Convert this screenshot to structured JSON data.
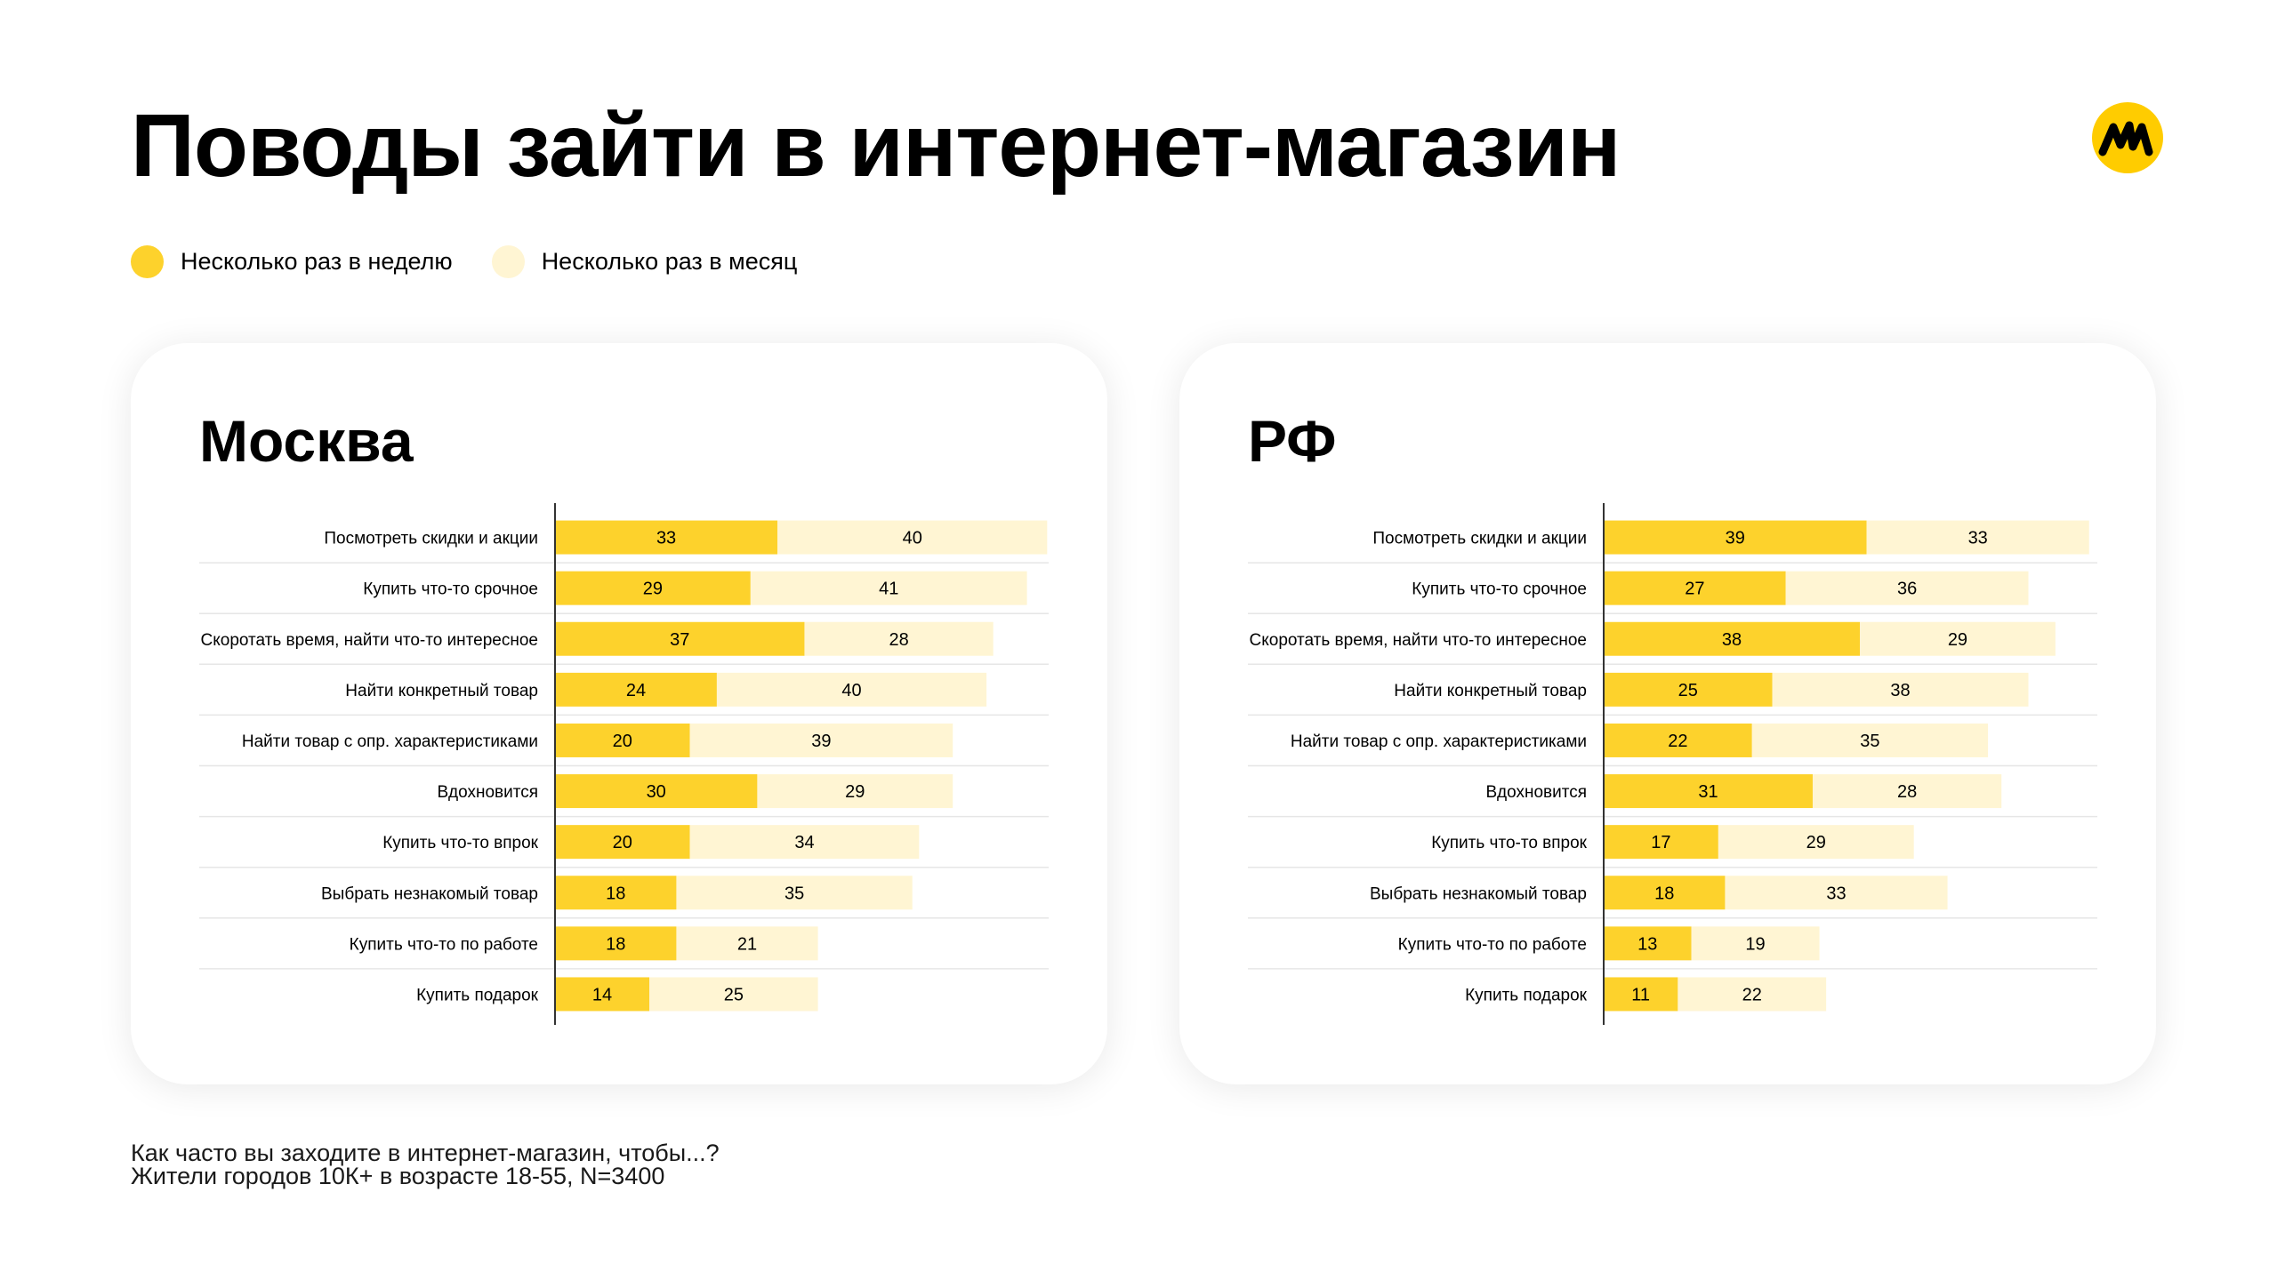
{
  "header": {
    "title": "Поводы зайти в интернет-магазин"
  },
  "legend": [
    {
      "label": "Несколько раз в неделю",
      "color": "#fdd22c"
    },
    {
      "label": "Несколько раз в месяц",
      "color": "#fff5d3"
    }
  ],
  "chart_data": [
    {
      "type": "bar",
      "orientation": "horizontal",
      "stacked": true,
      "title": "Москва",
      "categories": [
        "Посмотреть скидки и акции",
        "Купить что-то срочное",
        "Скоротать время, найти что-то интересное",
        "Найти конкретный товар",
        "Найти товар с опр. характеристиками",
        "Вдохновится",
        "Купить что-то впрок",
        "Выбрать незнакомый товар",
        "Купить что-то по работе",
        "Купить подарок"
      ],
      "series": [
        {
          "name": "Несколько раз в неделю",
          "values": [
            33,
            29,
            37,
            24,
            20,
            30,
            20,
            18,
            18,
            14
          ]
        },
        {
          "name": "Несколько раз в месяц",
          "values": [
            40,
            41,
            28,
            40,
            39,
            29,
            34,
            35,
            21,
            25
          ]
        }
      ]
    },
    {
      "type": "bar",
      "orientation": "horizontal",
      "stacked": true,
      "title": "РФ",
      "categories": [
        "Посмотреть скидки и акции",
        "Купить что-то срочное",
        "Скоротать время, найти что-то интересное",
        "Найти конкретный товар",
        "Найти товар с опр. характеристиками",
        "Вдохновится",
        "Купить что-то впрок",
        "Выбрать незнакомый товар",
        "Купить что-то по работе",
        "Купить подарок"
      ],
      "series": [
        {
          "name": "Несколько раз в неделю",
          "values": [
            39,
            27,
            38,
            25,
            22,
            31,
            17,
            18,
            13,
            11
          ]
        },
        {
          "name": "Несколько раз в месяц",
          "values": [
            33,
            36,
            29,
            38,
            35,
            28,
            29,
            33,
            19,
            22
          ]
        }
      ]
    }
  ],
  "footnote": {
    "line1": "Как часто вы заходите в интернет-магазин, чтобы...?",
    "line2": "Жители городов 10К+ в возрасте 18-55, N=3400"
  }
}
